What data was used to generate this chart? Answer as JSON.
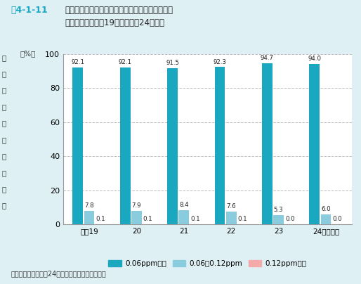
{
  "title_prefix": "図4-1-11",
  "title_main": "昼間の光化学オキシダント濃度レベル別測定時間\n割合の推移（平成19年度〜平成24年度）",
  "years": [
    "平成19",
    "20",
    "21",
    "22",
    "23",
    "24（年度）"
  ],
  "series1": [
    92.1,
    92.1,
    91.5,
    92.3,
    94.7,
    94.0
  ],
  "series2": [
    7.8,
    7.9,
    8.4,
    7.6,
    5.3,
    6.0
  ],
  "series3": [
    0.1,
    0.1,
    0.1,
    0.1,
    0.0,
    0.0
  ],
  "color1": "#1AA7C0",
  "color2": "#88CCDD",
  "color3": "#F5AAAA",
  "legend1": "0.06ppm以下",
  "legend2": "0.06〜0.12ppm",
  "legend3": "0.12ppm以上",
  "ylabel_chars": [
    "濃",
    "度",
    "別",
    "測",
    "定",
    "時",
    "間",
    "の",
    "割",
    "合"
  ],
  "yunits": "（%）",
  "ylim": [
    0,
    100
  ],
  "yticks": [
    0,
    20,
    40,
    60,
    80,
    100
  ],
  "background_color": "#DFF0F5",
  "plot_bg_color": "#FFFFFF",
  "source": "資料：環境省「平成24年度大気汚染状況報告書」",
  "title_prefix_color": "#1AA7C0"
}
